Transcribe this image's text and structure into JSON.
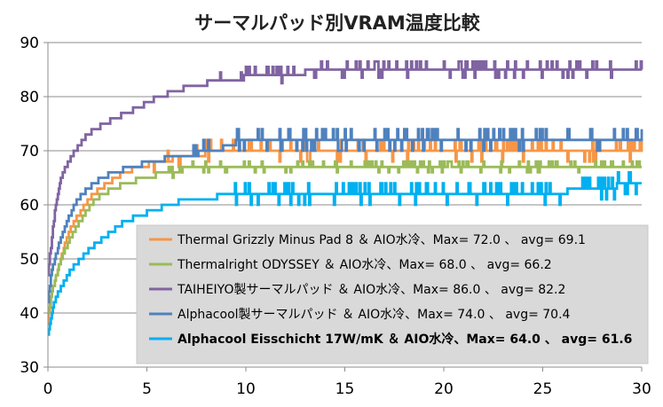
{
  "chart_data": {
    "type": "line",
    "title": "サーマルパッド別VRAM温度比較",
    "xlabel": "",
    "ylabel": "",
    "xlim": [
      0,
      30
    ],
    "ylim": [
      30,
      90
    ],
    "x_ticks": [
      "0",
      "5",
      "10",
      "15",
      "20",
      "25",
      "30"
    ],
    "y_ticks": [
      "30",
      "40",
      "50",
      "60",
      "70",
      "80",
      "90"
    ],
    "grid": true,
    "legend_position": "bottom-right",
    "series": [
      {
        "name": "Thermal Grizzly Minus Pad 8 ＆ AIO水冷、Max= 72.0 、 avg= 69.1",
        "color": "#f79646",
        "bold": false,
        "points": [
          [
            0,
            38
          ],
          [
            0.2,
            44
          ],
          [
            0.5,
            48
          ],
          [
            0.8,
            52
          ],
          [
            1.2,
            56
          ],
          [
            1.7,
            59
          ],
          [
            2.3,
            62
          ],
          [
            3,
            64
          ],
          [
            3.8,
            66
          ],
          [
            4.6,
            67
          ],
          [
            5.5,
            68
          ],
          [
            7,
            69
          ],
          [
            8.8,
            70
          ],
          [
            12,
            70
          ],
          [
            20,
            70
          ],
          [
            30,
            70
          ]
        ],
        "noise": 2,
        "noise_start": 5
      },
      {
        "name": "Thermalright ODYSSEY ＆ AIO水冷、Max= 68.0 、 avg= 66.2",
        "color": "#9bbb59",
        "bold": false,
        "points": [
          [
            0,
            40
          ],
          [
            0.2,
            44
          ],
          [
            0.5,
            48
          ],
          [
            0.9,
            52
          ],
          [
            1.3,
            55
          ],
          [
            1.8,
            58
          ],
          [
            2.4,
            61
          ],
          [
            3.2,
            63
          ],
          [
            4,
            64
          ],
          [
            4.8,
            65
          ],
          [
            6,
            66
          ],
          [
            7.5,
            67
          ],
          [
            10,
            67
          ],
          [
            20,
            67
          ],
          [
            30,
            67
          ]
        ],
        "noise": 1,
        "noise_start": 6
      },
      {
        "name": "TAIHEIYO製サーマルパッド ＆ AIO水冷、Max= 86.0 、 avg= 82.2",
        "color": "#8064a2",
        "bold": false,
        "points": [
          [
            0,
            47
          ],
          [
            0.2,
            54
          ],
          [
            0.4,
            60
          ],
          [
            0.6,
            64
          ],
          [
            0.9,
            67
          ],
          [
            1.2,
            69
          ],
          [
            1.6,
            71
          ],
          [
            2,
            73
          ],
          [
            2.4,
            74
          ],
          [
            2.9,
            75
          ],
          [
            3.4,
            76
          ],
          [
            3.9,
            77
          ],
          [
            4.6,
            78
          ],
          [
            5,
            79
          ],
          [
            5.6,
            80
          ],
          [
            6.4,
            81
          ],
          [
            7.2,
            82
          ],
          [
            8.8,
            83
          ],
          [
            11,
            84
          ],
          [
            15,
            85
          ],
          [
            20,
            85
          ],
          [
            30,
            85
          ]
        ],
        "noise": 1.5,
        "noise_start": 8
      },
      {
        "name": "Alphacool製サーマルパッド ＆ AIO水冷、Max= 74.0 、 avg= 70.4",
        "color": "#4f81bd",
        "bold": false,
        "points": [
          [
            0,
            42
          ],
          [
            0.2,
            48
          ],
          [
            0.5,
            52
          ],
          [
            0.8,
            55
          ],
          [
            1.1,
            58
          ],
          [
            1.5,
            61
          ],
          [
            2,
            63
          ],
          [
            2.7,
            65
          ],
          [
            3.4,
            66
          ],
          [
            4.2,
            67
          ],
          [
            5.2,
            68
          ],
          [
            6.5,
            69
          ],
          [
            8.6,
            70
          ],
          [
            9,
            71
          ],
          [
            10,
            72
          ],
          [
            20,
            72
          ],
          [
            30,
            72
          ]
        ],
        "noise": 2,
        "noise_start": 7
      },
      {
        "name": "Alphacool Eisschicht 17W/mK ＆ AIO水冷、Max= 64.0 、 avg= 61.6",
        "color": "#00b0f0",
        "bold": true,
        "points": [
          [
            0,
            36
          ],
          [
            0.2,
            40
          ],
          [
            0.4,
            43
          ],
          [
            0.7,
            45
          ],
          [
            1,
            47
          ],
          [
            1.4,
            49
          ],
          [
            1.9,
            51
          ],
          [
            2.5,
            53
          ],
          [
            3.2,
            55
          ],
          [
            3.9,
            57
          ],
          [
            4.6,
            58
          ],
          [
            5.3,
            59
          ],
          [
            6.1,
            60
          ],
          [
            7,
            61
          ],
          [
            8,
            61
          ],
          [
            9,
            62
          ],
          [
            15,
            62
          ],
          [
            20,
            62
          ],
          [
            25,
            62
          ],
          [
            30,
            64
          ]
        ],
        "noise": 2,
        "noise_start": 9
      }
    ]
  }
}
